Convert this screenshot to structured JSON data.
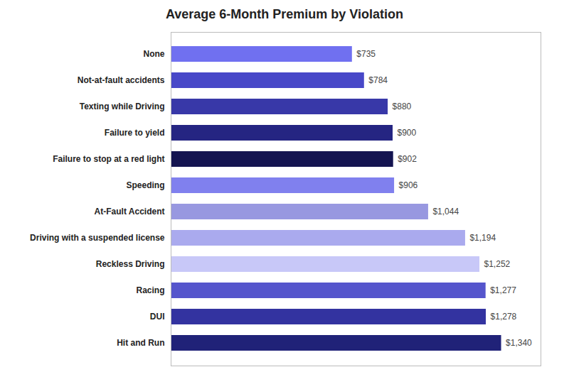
{
  "chart_data": {
    "type": "bar",
    "orientation": "horizontal",
    "title": "Average 6-Month Premium by Violation",
    "categories": [
      "None",
      "Not-at-fault accidents",
      "Texting while Driving",
      "Failure to yield",
      "Failure to stop at a red light",
      "Speeding",
      "At-Fault Accident",
      "Driving with a suspended license",
      "Reckless Driving",
      "Racing",
      "DUI",
      "Hit and Run"
    ],
    "values": [
      735,
      784,
      880,
      900,
      902,
      906,
      1044,
      1194,
      1252,
      1277,
      1278,
      1340
    ],
    "value_labels": [
      "$735",
      "$784",
      "$880",
      "$900",
      "$902",
      "$906",
      "$1,044",
      "$1,194",
      "$1,252",
      "$1,277",
      "$1,278",
      "$1,340"
    ],
    "data_labels": true,
    "colors": [
      "#7070F0",
      "#4848C8",
      "#3838A8",
      "#252582",
      "#141450",
      "#8080EE",
      "#9898E0",
      "#AAAAEE",
      "#C8C8F8",
      "#5555CC",
      "#3333A0",
      "#202278"
    ],
    "xlim": [
      0,
      1500
    ],
    "tick_labels": "y",
    "grid": false
  }
}
